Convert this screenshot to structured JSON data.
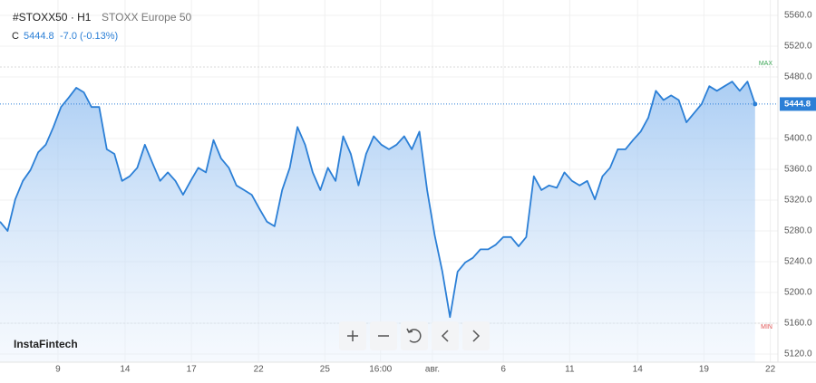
{
  "chart_data": {
    "type": "line",
    "title": "#STOXX50 · H1",
    "subtitle": "STOXX Europe 50",
    "close_prefix": "C",
    "close": 5444.8,
    "change": "-7.0 (-0.13%)",
    "brand": "InstaFintech",
    "max_line": {
      "label": "MAX",
      "value": 5493
    },
    "min_line": {
      "label": "MIN",
      "value": 5160
    },
    "color": "#2b7fd6",
    "grid": true,
    "x": [
      0,
      1,
      2,
      3,
      4,
      5,
      6,
      7,
      8,
      9,
      10,
      11,
      12,
      13,
      14,
      15,
      16,
      17,
      18,
      19,
      20,
      21,
      22,
      23,
      24,
      25,
      26,
      27,
      28,
      29,
      30,
      31,
      32,
      33,
      34,
      35,
      36,
      37,
      38,
      39,
      40,
      41,
      42,
      43,
      44,
      45,
      46,
      47,
      48,
      49,
      50,
      51,
      52,
      53,
      54,
      55,
      56,
      57,
      58,
      59,
      60,
      61,
      62,
      63,
      64,
      65,
      66,
      67,
      68,
      69,
      70,
      71,
      72,
      73,
      74,
      75,
      76,
      77,
      78,
      79,
      80,
      81,
      82,
      83,
      84,
      85,
      86,
      87,
      88,
      89,
      90,
      91,
      92,
      93,
      94,
      95,
      96,
      97,
      98,
      99
    ],
    "values": [
      5292,
      5280,
      5321,
      5345,
      5359,
      5382,
      5392,
      5415,
      5441,
      5453,
      5466,
      5460,
      5441,
      5441,
      5386,
      5380,
      5345,
      5351,
      5362,
      5392,
      5368,
      5345,
      5356,
      5345,
      5327,
      5345,
      5362,
      5356,
      5398,
      5374,
      5362,
      5339,
      5333,
      5327,
      5309,
      5292,
      5286,
      5333,
      5362,
      5415,
      5392,
      5356,
      5333,
      5362,
      5345,
      5403,
      5380,
      5339,
      5380,
      5403,
      5392,
      5386,
      5392,
      5403,
      5386,
      5409,
      5333,
      5274,
      5227,
      5168,
      5227,
      5239,
      5245,
      5256,
      5256,
      5262,
      5272,
      5272,
      5260,
      5272,
      5351,
      5333,
      5339,
      5336,
      5356,
      5345,
      5339,
      5345,
      5321,
      5351,
      5362,
      5386,
      5386,
      5398,
      5409,
      5427,
      5462,
      5450,
      5456,
      5450,
      5421,
      5433,
      5445,
      5468,
      5462,
      5468,
      5474,
      5462,
      5474,
      5444.8
    ],
    "xlim": [
      0,
      102
    ],
    "xticks": [
      {
        "value": 7.6,
        "label": "9"
      },
      {
        "value": 16.4,
        "label": "14"
      },
      {
        "value": 25.1,
        "label": "17"
      },
      {
        "value": 33.9,
        "label": "22"
      },
      {
        "value": 42.6,
        "label": "25"
      },
      {
        "value": 49.9,
        "label": "16:00"
      },
      {
        "value": 56.7,
        "label": "авг."
      },
      {
        "value": 66,
        "label": "6"
      },
      {
        "value": 74.7,
        "label": "11"
      },
      {
        "value": 83.6,
        "label": "14"
      },
      {
        "value": 92.3,
        "label": "19"
      },
      {
        "value": 101,
        "label": "22"
      }
    ],
    "ylim": [
      5110,
      5580
    ],
    "yticks": [
      {
        "value": 5120,
        "label": "5120.0"
      },
      {
        "value": 5160,
        "label": "5160.0"
      },
      {
        "value": 5200,
        "label": "5200.0"
      },
      {
        "value": 5240,
        "label": "5240.0"
      },
      {
        "value": 5280,
        "label": "5280.0"
      },
      {
        "value": 5320,
        "label": "5320.0"
      },
      {
        "value": 5360,
        "label": "5360.0"
      },
      {
        "value": 5400,
        "label": "5400.0"
      },
      {
        "value": 5480,
        "label": "5480.0"
      },
      {
        "value": 5520,
        "label": "5520.0"
      },
      {
        "value": 5560,
        "label": "5560.0"
      }
    ]
  }
}
